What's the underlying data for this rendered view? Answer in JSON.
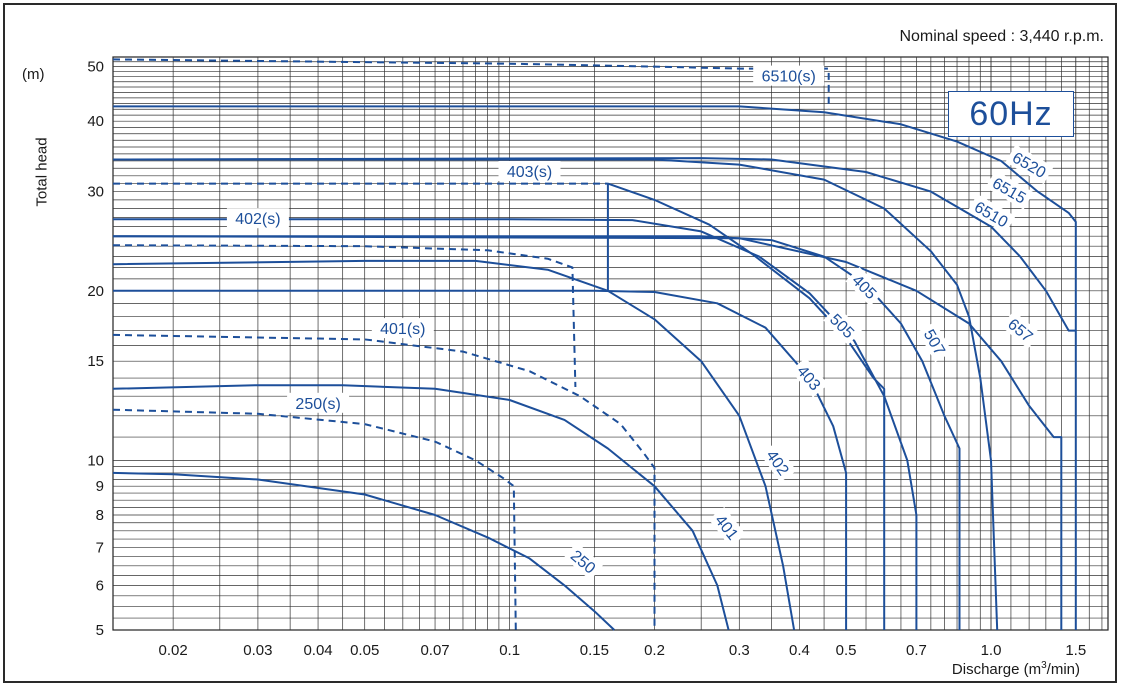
{
  "header": {
    "nominal_speed": "Nominal speed : 3,440 r.p.m.",
    "frequency_badge": "60Hz"
  },
  "axes": {
    "y_unit": "(m)",
    "y_label": "Total head",
    "x_label_main": "Discharge  (m",
    "x_label_sup": "3",
    "x_label_end": "/min)"
  },
  "chart_data": {
    "type": "line",
    "title": "",
    "xlabel": "Discharge (m3/min)",
    "ylabel": "Total head",
    "xscale": "log",
    "yscale": "log",
    "xlim": [
      0.015,
      1.75
    ],
    "ylim": [
      5,
      52
    ],
    "grid": true,
    "x_ticks": [
      {
        "v": 0.02,
        "label": "0.02"
      },
      {
        "v": 0.03,
        "label": "0.03"
      },
      {
        "v": 0.04,
        "label": "0.04"
      },
      {
        "v": 0.05,
        "label": "0.05"
      },
      {
        "v": 0.07,
        "label": "0.07"
      },
      {
        "v": 0.1,
        "label": "0.1"
      },
      {
        "v": 0.15,
        "label": "0.15"
      },
      {
        "v": 0.2,
        "label": "0.2"
      },
      {
        "v": 0.3,
        "label": "0.3"
      },
      {
        "v": 0.4,
        "label": "0.4"
      },
      {
        "v": 0.5,
        "label": "0.5"
      },
      {
        "v": 0.7,
        "label": "0.7"
      },
      {
        "v": 1.0,
        "label": "1.0"
      },
      {
        "v": 1.5,
        "label": "1.5"
      }
    ],
    "y_ticks": [
      {
        "v": 5,
        "label": "5"
      },
      {
        "v": 6,
        "label": "6"
      },
      {
        "v": 7,
        "label": "7"
      },
      {
        "v": 8,
        "label": "8"
      },
      {
        "v": 9,
        "label": "9"
      },
      {
        "v": 10,
        "label": "10"
      },
      {
        "v": 15,
        "label": "15"
      },
      {
        "v": 20,
        "label": "20"
      },
      {
        "v": 30,
        "label": "30"
      },
      {
        "v": 40,
        "label": "40"
      },
      {
        "v": 50,
        "label": "50"
      }
    ],
    "series": [
      {
        "name": "250",
        "style": "solid",
        "label_at": [
          0.142,
          6.6
        ],
        "label_rot": 40,
        "points": [
          [
            0.015,
            9.5
          ],
          [
            0.02,
            9.45
          ],
          [
            0.03,
            9.25
          ],
          [
            0.05,
            8.7
          ],
          [
            0.07,
            8.0
          ],
          [
            0.09,
            7.3
          ],
          [
            0.11,
            6.7
          ],
          [
            0.13,
            6.0
          ],
          [
            0.15,
            5.4
          ],
          [
            0.165,
            5.0
          ]
        ]
      },
      {
        "name": "250(s)",
        "style": "dashed",
        "label_at": [
          0.04,
          12.6
        ],
        "label_rot": 0,
        "points": [
          [
            0.015,
            12.3
          ],
          [
            0.03,
            12.1
          ],
          [
            0.05,
            11.6
          ],
          [
            0.07,
            10.8
          ],
          [
            0.085,
            10.0
          ],
          [
            0.097,
            9.3
          ],
          [
            0.102,
            9.0
          ],
          [
            0.103,
            5.0
          ]
        ]
      },
      {
        "name": "401",
        "style": "solid",
        "label_at": [
          0.282,
          7.6
        ],
        "label_rot": 52,
        "points": [
          [
            0.015,
            13.4
          ],
          [
            0.03,
            13.6
          ],
          [
            0.045,
            13.6
          ],
          [
            0.07,
            13.4
          ],
          [
            0.1,
            12.8
          ],
          [
            0.13,
            11.8
          ],
          [
            0.16,
            10.5
          ],
          [
            0.2,
            9.0
          ],
          [
            0.24,
            7.5
          ],
          [
            0.27,
            6.0
          ],
          [
            0.285,
            5.0
          ]
        ]
      },
      {
        "name": "401(s)",
        "style": "dashed",
        "label_at": [
          0.06,
          17.1
        ],
        "label_rot": 0,
        "points": [
          [
            0.015,
            16.7
          ],
          [
            0.05,
            16.4
          ],
          [
            0.08,
            15.6
          ],
          [
            0.11,
            14.4
          ],
          [
            0.14,
            13.0
          ],
          [
            0.17,
            11.6
          ],
          [
            0.19,
            10.3
          ],
          [
            0.2,
            9.7
          ],
          [
            0.2,
            5.0
          ]
        ]
      },
      {
        "name": "402",
        "style": "solid",
        "label_at": [
          0.36,
          9.9
        ],
        "label_rot": 55,
        "points": [
          [
            0.015,
            22.3
          ],
          [
            0.05,
            22.6
          ],
          [
            0.085,
            22.6
          ],
          [
            0.12,
            21.8
          ],
          [
            0.16,
            20.0
          ],
          [
            0.2,
            17.8
          ],
          [
            0.25,
            15.0
          ],
          [
            0.3,
            12.0
          ],
          [
            0.34,
            9.0
          ],
          [
            0.37,
            6.5
          ],
          [
            0.39,
            5.0
          ]
        ]
      },
      {
        "name": "402(s)",
        "style": "dashed",
        "label_at": [
          0.03,
          26.8
        ],
        "label_rot": 0,
        "points": [
          [
            0.015,
            24.1
          ],
          [
            0.05,
            24.0
          ],
          [
            0.09,
            23.6
          ],
          [
            0.12,
            22.8
          ],
          [
            0.135,
            22.0
          ],
          [
            0.137,
            13.5
          ]
        ]
      },
      {
        "name": "403",
        "style": "solid",
        "label_at": [
          0.418,
          14.0
        ],
        "label_rot": 50,
        "points": [
          [
            0.015,
            20.0
          ],
          [
            0.15,
            20.0
          ],
          [
            0.2,
            19.9
          ],
          [
            0.27,
            19.0
          ],
          [
            0.34,
            17.2
          ],
          [
            0.42,
            14.0
          ],
          [
            0.47,
            11.5
          ],
          [
            0.5,
            9.5
          ],
          [
            0.5,
            5.0
          ]
        ]
      },
      {
        "name": "403(s)",
        "style": "dashed",
        "label_at": [
          0.11,
          32.5
        ],
        "label_rot": 0,
        "points": [
          [
            0.015,
            31.0
          ],
          [
            0.1,
            31.0
          ],
          [
            0.15,
            31.0
          ],
          [
            0.16,
            31.0
          ]
        ]
      },
      {
        "name": "403-vertical",
        "style": "solid",
        "label_at": null,
        "label_rot": 0,
        "points": [
          [
            0.16,
            31.0
          ],
          [
            0.16,
            20.0
          ]
        ]
      },
      {
        "name": "405",
        "style": "solid",
        "label_at": [
          0.545,
          20.3
        ],
        "label_rot": 45,
        "points": [
          [
            0.16,
            31.0
          ],
          [
            0.2,
            29.0
          ],
          [
            0.26,
            26.2
          ],
          [
            0.32,
            23.2
          ],
          [
            0.42,
            19.4
          ],
          [
            0.5,
            16.5
          ],
          [
            0.57,
            14.0
          ],
          [
            0.6,
            13.4
          ],
          [
            0.6,
            5.0
          ]
        ]
      },
      {
        "name": "505",
        "style": "solid",
        "label_at": [
          0.49,
          17.3
        ],
        "label_rot": 45,
        "points": [
          [
            0.015,
            26.8
          ],
          [
            0.1,
            26.8
          ],
          [
            0.18,
            26.7
          ],
          [
            0.25,
            25.5
          ],
          [
            0.33,
            23.0
          ],
          [
            0.42,
            19.8
          ],
          [
            0.52,
            16.3
          ],
          [
            0.6,
            13.0
          ],
          [
            0.67,
            10.0
          ],
          [
            0.7,
            8.0
          ],
          [
            0.7,
            5.0
          ]
        ]
      },
      {
        "name": "507",
        "style": "solid",
        "label_at": [
          0.762,
          16.2
        ],
        "label_rot": 60,
        "points": [
          [
            0.015,
            25.0
          ],
          [
            0.25,
            25.0
          ],
          [
            0.35,
            24.6
          ],
          [
            0.45,
            23.0
          ],
          [
            0.55,
            20.5
          ],
          [
            0.65,
            17.5
          ],
          [
            0.72,
            15.0
          ],
          [
            0.8,
            12.0
          ],
          [
            0.86,
            10.5
          ],
          [
            0.86,
            5.0
          ]
        ]
      },
      {
        "name": "657",
        "style": "solid",
        "label_at": [
          1.15,
          17.0
        ],
        "label_rot": 40,
        "points": [
          [
            0.015,
            25.0
          ],
          [
            0.3,
            24.8
          ],
          [
            0.5,
            22.5
          ],
          [
            0.7,
            20.0
          ],
          [
            0.9,
            17.5
          ],
          [
            1.05,
            15.0
          ],
          [
            1.2,
            12.5
          ],
          [
            1.35,
            11.0
          ],
          [
            1.4,
            11.0
          ],
          [
            1.4,
            5.0
          ]
        ]
      },
      {
        "name": "6510",
        "style": "solid",
        "label_at": [
          1.0,
          27.3
        ],
        "label_rot": 30,
        "points": [
          [
            0.015,
            34.2
          ],
          [
            0.2,
            34.2
          ],
          [
            0.3,
            33.5
          ],
          [
            0.45,
            31.5
          ],
          [
            0.6,
            28.0
          ],
          [
            0.75,
            23.5
          ],
          [
            0.85,
            20.5
          ],
          [
            0.9,
            18.0
          ],
          [
            0.95,
            14.0
          ],
          [
            1.0,
            10.0
          ],
          [
            1.03,
            5.0
          ]
        ]
      },
      {
        "name": "6515",
        "style": "solid",
        "label_at": [
          1.09,
          30.1
        ],
        "label_rot": 30,
        "points": [
          [
            0.015,
            34.2
          ],
          [
            0.25,
            34.4
          ],
          [
            0.35,
            34.2
          ],
          [
            0.55,
            32.5
          ],
          [
            0.75,
            30.0
          ],
          [
            1.0,
            26.0
          ],
          [
            1.15,
            23.0
          ],
          [
            1.3,
            20.0
          ],
          [
            1.45,
            17.0
          ],
          [
            1.5,
            17.0
          ],
          [
            1.5,
            5.0
          ]
        ]
      },
      {
        "name": "6520",
        "style": "solid",
        "label_at": [
          1.2,
          33.4
        ],
        "label_rot": 30,
        "points": [
          [
            0.015,
            42.5
          ],
          [
            0.17,
            42.5
          ],
          [
            0.3,
            42.5
          ],
          [
            0.45,
            41.5
          ],
          [
            0.65,
            39.5
          ],
          [
            0.85,
            36.8
          ],
          [
            1.05,
            34.0
          ],
          [
            1.25,
            30.0
          ],
          [
            1.45,
            27.5
          ],
          [
            1.5,
            26.5
          ],
          [
            1.5,
            17.0
          ]
        ]
      },
      {
        "name": "6510(s)",
        "style": "dashed",
        "label_at": [
          0.38,
          48.0
        ],
        "label_rot": 0,
        "points": [
          [
            0.015,
            51.5
          ],
          [
            0.1,
            50.6
          ],
          [
            0.2,
            50.0
          ],
          [
            0.3,
            49.6
          ],
          [
            0.46,
            49.6
          ],
          [
            0.46,
            42.0
          ]
        ]
      }
    ]
  }
}
